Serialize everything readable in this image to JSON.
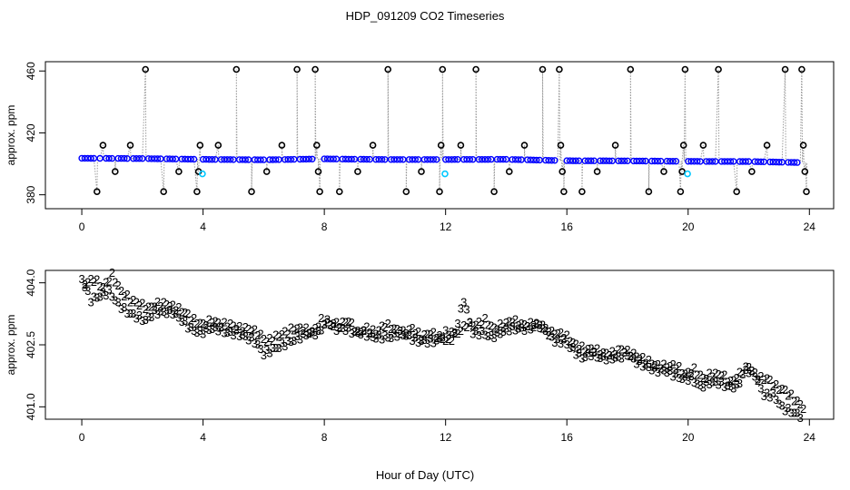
{
  "title": "HDP_091209  CO2 Timeseries",
  "x_axis_title": "Hour of Day (UTC)",
  "colors": {
    "primary_points": "#0000ff",
    "bracket_points": "#000000",
    "flagged_points": "#00c8ff",
    "trace": "#9a9a9a",
    "series_2": "#00b000",
    "series_3": "#0000ff"
  },
  "chart_data": [
    {
      "type": "scatter",
      "title": "",
      "xlabel": "",
      "ylabel": "approx. ppm",
      "xlim": [
        -1.2,
        24.8
      ],
      "ylim": [
        371,
        466
      ],
      "x_ticks": [
        "0",
        "4",
        "8",
        "12",
        "16",
        "20",
        "24"
      ],
      "y_ticks": [
        "380",
        "420",
        "460"
      ],
      "grid": false,
      "legend": "none",
      "series": [
        {
          "marker": "open circle (blue)",
          "values_description": "continuous ambient CO2 record",
          "x": [
            0,
            2,
            4,
            6,
            8,
            10,
            12,
            14,
            16,
            18,
            20,
            22,
            23.8
          ],
          "y": [
            403.6,
            403.4,
            402.9,
            402.6,
            403.2,
            402.8,
            402.8,
            402.9,
            402.0,
            401.9,
            401.6,
            401.5,
            400.8
          ]
        },
        {
          "marker": "open circle (black)",
          "values_description": "calibration standards sequence",
          "x": [
            0.5,
            0.7,
            1.1,
            1.6,
            2.1,
            2.7,
            3.2,
            3.8,
            3.85,
            3.9,
            4.5,
            5.1,
            5.6,
            6.1,
            6.6,
            7.1,
            7.7,
            7.75,
            7.8,
            7.85,
            8.5,
            9.1,
            9.6,
            10.1,
            10.7,
            11.2,
            11.8,
            11.85,
            11.9,
            12.5,
            13.0,
            13.6,
            14.1,
            14.6,
            15.2,
            15.75,
            15.8,
            15.85,
            15.9,
            16.5,
            17.0,
            17.6,
            18.1,
            18.7,
            19.2,
            19.75,
            19.8,
            19.85,
            19.9,
            20.5,
            21.0,
            21.6,
            22.1,
            22.6,
            23.2,
            23.75,
            23.8,
            23.85,
            23.9
          ],
          "y": [
            382,
            412,
            395,
            412,
            461,
            382,
            395,
            382,
            395,
            412,
            412,
            461,
            382,
            395,
            412,
            461,
            461,
            412,
            395,
            382,
            382,
            395,
            412,
            461,
            382,
            395,
            382,
            412,
            461,
            412,
            461,
            382,
            395,
            412,
            461,
            461,
            412,
            395,
            382,
            382,
            395,
            412,
            461,
            382,
            395,
            382,
            395,
            412,
            461,
            412,
            461,
            382,
            395,
            412,
            461,
            461,
            412,
            395,
            382
          ]
        },
        {
          "marker": "open circle (cyan)",
          "values_description": "flagged points",
          "x": [
            3.98,
            11.98,
            19.98
          ],
          "y": [
            393.5,
            393.5,
            393.5
          ]
        }
      ]
    },
    {
      "type": "scatter",
      "title": "",
      "xlabel": "Hour of Day (UTC)",
      "ylabel": "approx. ppm",
      "xlim": [
        -1.2,
        24.8
      ],
      "ylim": [
        400.7,
        404.3
      ],
      "x_ticks": [
        "0",
        "4",
        "8",
        "12",
        "16",
        "20",
        "24"
      ],
      "y_ticks": [
        "401.0",
        "402.5",
        "404.0"
      ],
      "grid": false,
      "legend": "none",
      "series": [
        {
          "marker_text": "3",
          "x": [
            0.0,
            0.3,
            0.6,
            0.9,
            1.2,
            1.5,
            1.8,
            2.1,
            2.4,
            2.7,
            3.0,
            3.3,
            3.6,
            3.9,
            4.2,
            4.5,
            4.8,
            5.1,
            5.4,
            5.7,
            6.0,
            6.3,
            6.6,
            6.9,
            7.2,
            7.5,
            7.8,
            8.1,
            8.4,
            8.7,
            9.0,
            9.3,
            9.6,
            9.9,
            10.2,
            10.5,
            10.8,
            11.1,
            11.4,
            11.7,
            12.0,
            12.3,
            12.6,
            12.9,
            13.2,
            13.5,
            13.8,
            14.1,
            14.4,
            14.7,
            15.0,
            15.3,
            15.6,
            15.9,
            16.2,
            16.5,
            16.8,
            17.1,
            17.4,
            17.7,
            18.0,
            18.3,
            18.6,
            18.9,
            19.2,
            19.5,
            19.8,
            20.1,
            20.4,
            20.7,
            21.0,
            21.3,
            21.6,
            21.9,
            22.2,
            22.5,
            22.8,
            23.1,
            23.4,
            23.7
          ],
          "y": [
            404.1,
            403.6,
            403.7,
            403.8,
            403.5,
            403.3,
            403.2,
            403.1,
            403.3,
            403.3,
            403.3,
            403.1,
            402.9,
            402.8,
            402.9,
            402.9,
            402.8,
            402.8,
            402.7,
            402.6,
            402.3,
            402.4,
            402.5,
            402.6,
            402.7,
            402.8,
            402.8,
            403.1,
            402.9,
            402.9,
            402.8,
            402.8,
            402.7,
            402.7,
            402.7,
            402.8,
            402.7,
            402.6,
            402.6,
            402.6,
            402.8,
            402.8,
            403.6,
            402.8,
            402.8,
            402.7,
            402.8,
            402.9,
            402.9,
            402.9,
            403.0,
            402.9,
            402.6,
            402.6,
            402.4,
            402.2,
            402.3,
            402.2,
            402.2,
            402.2,
            402.3,
            402.1,
            402.0,
            401.9,
            401.9,
            401.8,
            401.7,
            401.7,
            401.5,
            401.6,
            401.6,
            401.5,
            401.5,
            401.9,
            401.8,
            401.3,
            401.3,
            401.0,
            400.9,
            400.8
          ]
        },
        {
          "marker_text": "2",
          "x": [
            0.1,
            0.4,
            0.7,
            1.0,
            1.3,
            1.6,
            1.9,
            2.2,
            2.5,
            2.8,
            3.1,
            3.4,
            3.7,
            4.0,
            4.3,
            4.6,
            4.9,
            5.2,
            5.5,
            5.8,
            6.1,
            6.4,
            6.7,
            7.0,
            7.3,
            7.6,
            7.9,
            8.2,
            8.5,
            8.8,
            9.1,
            9.4,
            9.7,
            10.0,
            10.3,
            10.6,
            10.9,
            11.2,
            11.5,
            11.8,
            12.1,
            12.4,
            12.7,
            13.0,
            13.3,
            13.6,
            13.9,
            14.2,
            14.5,
            14.8,
            15.1,
            15.4,
            15.7,
            16.0,
            16.3,
            16.6,
            16.9,
            17.2,
            17.5,
            17.8,
            18.1,
            18.4,
            18.7,
            19.0,
            19.3,
            19.6,
            19.9,
            20.2,
            20.5,
            20.8,
            21.1,
            21.4,
            21.7,
            22.0,
            22.3,
            22.6,
            22.9,
            23.2,
            23.5,
            23.8
          ],
          "y": [
            404.0,
            404.1,
            403.9,
            404.2,
            403.8,
            403.6,
            403.5,
            403.4,
            403.5,
            403.5,
            403.4,
            403.3,
            403.1,
            403.0,
            403.1,
            403.0,
            403.0,
            402.9,
            402.9,
            402.8,
            402.6,
            402.7,
            402.8,
            402.9,
            402.9,
            402.8,
            403.1,
            403.0,
            403.0,
            403.1,
            402.8,
            402.9,
            402.8,
            403.0,
            402.9,
            402.8,
            402.9,
            402.7,
            402.8,
            402.7,
            402.6,
            402.8,
            403.0,
            403.0,
            403.1,
            402.9,
            403.0,
            403.1,
            403.0,
            403.0,
            403.0,
            402.8,
            402.8,
            402.7,
            402.5,
            402.4,
            402.4,
            402.3,
            402.3,
            402.4,
            402.3,
            402.2,
            402.1,
            402.0,
            402.0,
            402.0,
            401.8,
            401.9,
            401.7,
            401.8,
            401.8,
            401.6,
            401.8,
            402.0,
            401.7,
            401.7,
            401.5,
            401.4,
            401.2,
            401.0
          ]
        }
      ]
    }
  ]
}
